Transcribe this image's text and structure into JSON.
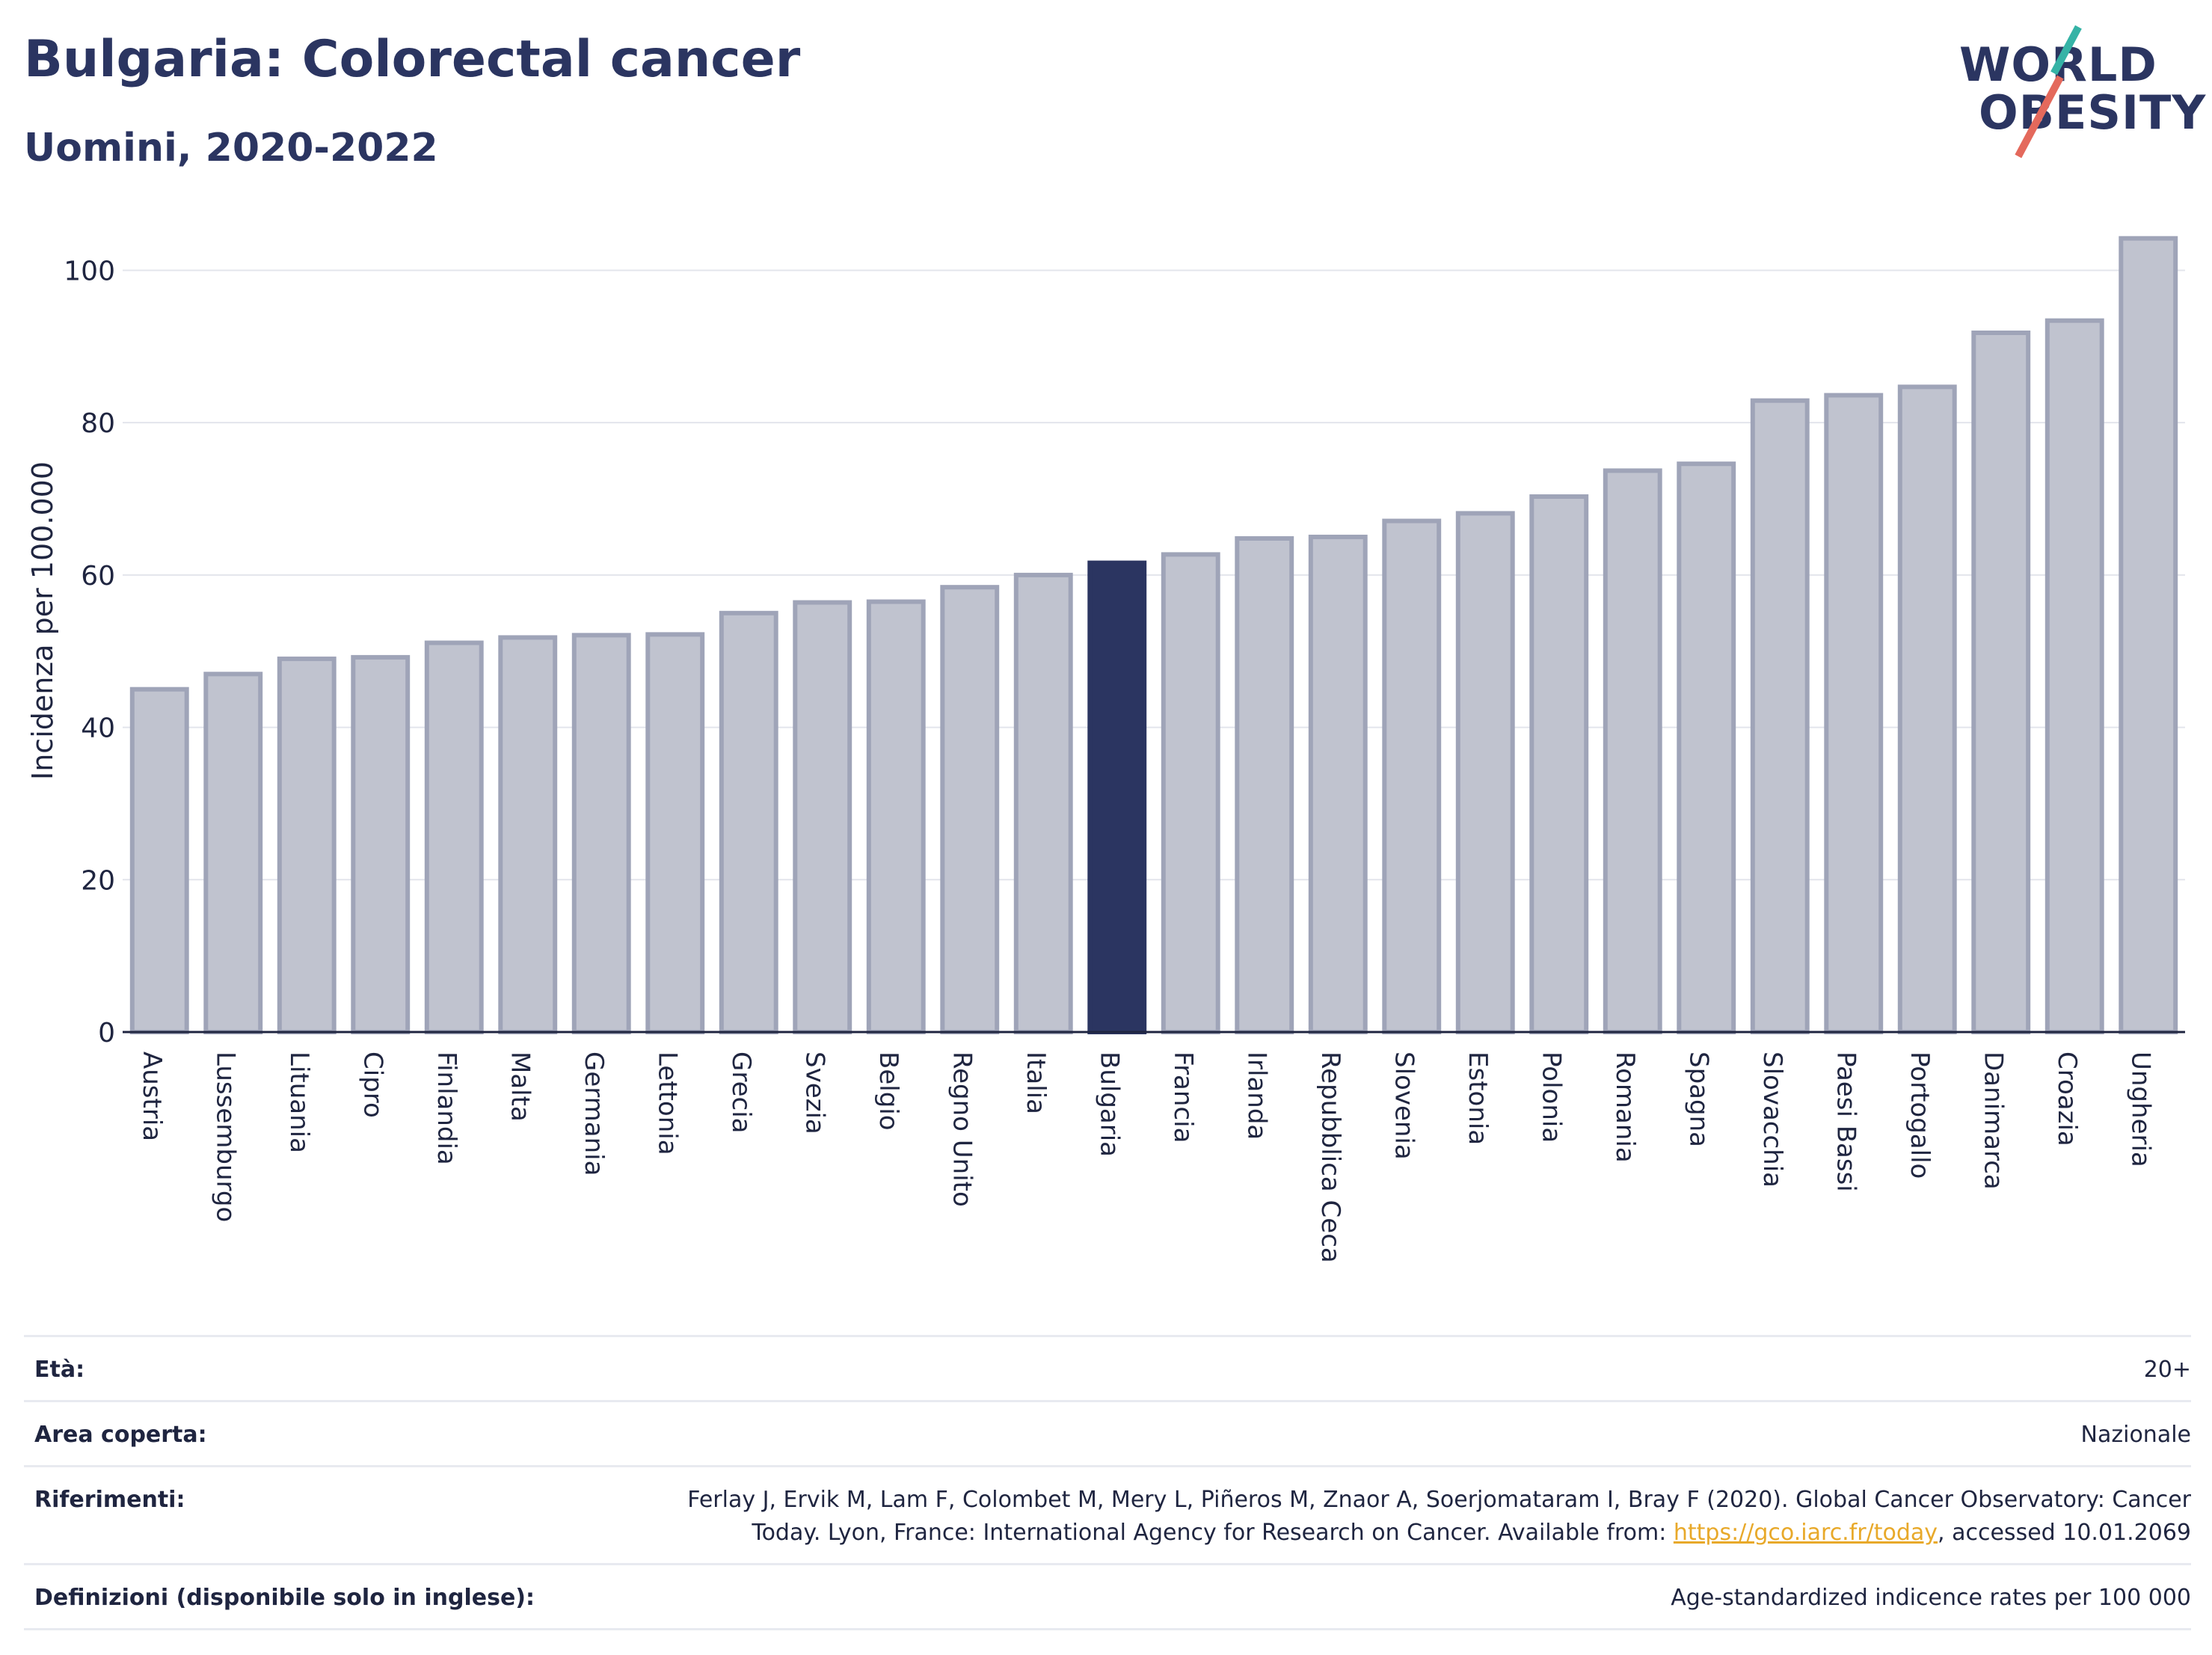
{
  "title": "Bulgaria: Colorectal cancer",
  "subtitle": "Uomini, 2020-2022",
  "logo": {
    "line1": "WORLD",
    "line2": "OBESITY"
  },
  "colors": {
    "highlight": "#2b3561",
    "bar_fill": "#c0c3cf",
    "bar_stroke": "#9fa4b8",
    "text": "#2b3561"
  },
  "chart_data": {
    "type": "bar",
    "ylabel": "Incidenza per 100.000",
    "xlabel": "",
    "ylim": [
      0,
      108
    ],
    "yticks": [
      0,
      20,
      40,
      60,
      80,
      100
    ],
    "grid": true,
    "highlight": "Bulgaria",
    "categories": [
      "Austria",
      "Lussemburgo",
      "Lituania",
      "Cipro",
      "Finlandia",
      "Malta",
      "Germania",
      "Lettonia",
      "Grecia",
      "Svezia",
      "Belgio",
      "Regno Unito",
      "Italia",
      "Bulgaria",
      "Francia",
      "Irlanda",
      "Repubblica Ceca",
      "Slovenia",
      "Estonia",
      "Polonia",
      "Romania",
      "Spagna",
      "Slovacchia",
      "Paesi Bassi",
      "Portogallo",
      "Danimarca",
      "Croazia",
      "Ungheria"
    ],
    "values": [
      45.0,
      47.0,
      49.0,
      49.2,
      51.1,
      51.8,
      52.1,
      52.2,
      55.0,
      56.4,
      56.5,
      58.4,
      60.0,
      61.6,
      62.7,
      64.8,
      65.0,
      67.1,
      68.1,
      70.3,
      73.7,
      74.6,
      82.9,
      83.6,
      84.7,
      91.8,
      93.4,
      104.2
    ]
  },
  "info": {
    "age": {
      "label": "Età:",
      "value": "20+"
    },
    "area": {
      "label": "Area coperta:",
      "value": "Nazionale"
    },
    "references": {
      "label": "Riferimenti:",
      "text_line1": "Ferlay J, Ervik M, Lam F, Colombet M, Mery L, Piñeros M, Znaor A, Soerjomataram I, Bray F (2020). Global Cancer Observatory: Cancer",
      "text_line2_prefix": "Today. Lyon, France: International Agency for Research on Cancer. Available from: ",
      "link": "https://gco.iarc.fr/today",
      "text_line2_suffix": ", accessed 10.01.2069"
    },
    "definitions": {
      "label": "Definizioni (disponibile solo in inglese):",
      "value": "Age-standardized indicence rates per 100 000"
    }
  }
}
